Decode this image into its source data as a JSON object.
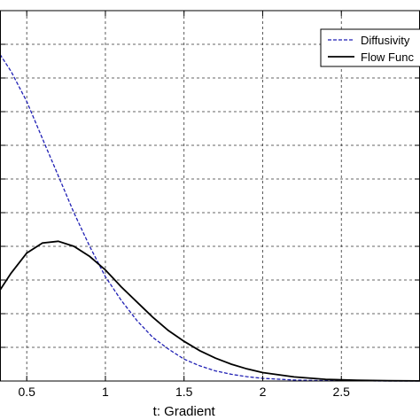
{
  "chart_data": {
    "type": "line",
    "title": "",
    "xlabel": "t: Gradient",
    "ylabel": "",
    "xlim": [
      0.33,
      3.0
    ],
    "ylim": [
      0.0,
      1.1
    ],
    "xticks": [
      0.5,
      1,
      1.5,
      2,
      2.5
    ],
    "xtick_labels": [
      "0.5",
      "1",
      "1.5",
      "2",
      "2.5"
    ],
    "grid": true,
    "legend": {
      "placement": "top-right",
      "entries": [
        "Diffusivity",
        "Flow Func"
      ]
    },
    "series": [
      {
        "name": "Diffusivity",
        "color": "#1f1fb4",
        "line_style": "dashed",
        "x": [
          0.33,
          0.4,
          0.5,
          0.6,
          0.7,
          0.8,
          0.9,
          1.0,
          1.1,
          1.2,
          1.3,
          1.4,
          1.5,
          1.6,
          1.7,
          1.8,
          1.9,
          2.0,
          2.2,
          2.4,
          2.6,
          2.8,
          3.0
        ],
        "y": [
          0.97,
          0.92,
          0.83,
          0.72,
          0.61,
          0.5,
          0.4,
          0.31,
          0.24,
          0.18,
          0.13,
          0.095,
          0.065,
          0.045,
          0.03,
          0.02,
          0.013,
          0.008,
          0.003,
          0.001,
          0.0004,
          0.0001,
          0.0
        ]
      },
      {
        "name": "Flow Func",
        "color": "#000000",
        "line_style": "solid",
        "x": [
          0.33,
          0.4,
          0.5,
          0.6,
          0.7,
          0.8,
          0.9,
          1.0,
          1.1,
          1.2,
          1.3,
          1.4,
          1.5,
          1.6,
          1.7,
          1.8,
          1.9,
          2.0,
          2.2,
          2.4,
          2.6,
          2.8,
          3.0
        ],
        "y": [
          0.27,
          0.32,
          0.38,
          0.41,
          0.415,
          0.4,
          0.37,
          0.33,
          0.28,
          0.235,
          0.19,
          0.15,
          0.118,
          0.09,
          0.068,
          0.05,
          0.036,
          0.025,
          0.012,
          0.005,
          0.002,
          0.0008,
          0.0003
        ]
      }
    ]
  }
}
